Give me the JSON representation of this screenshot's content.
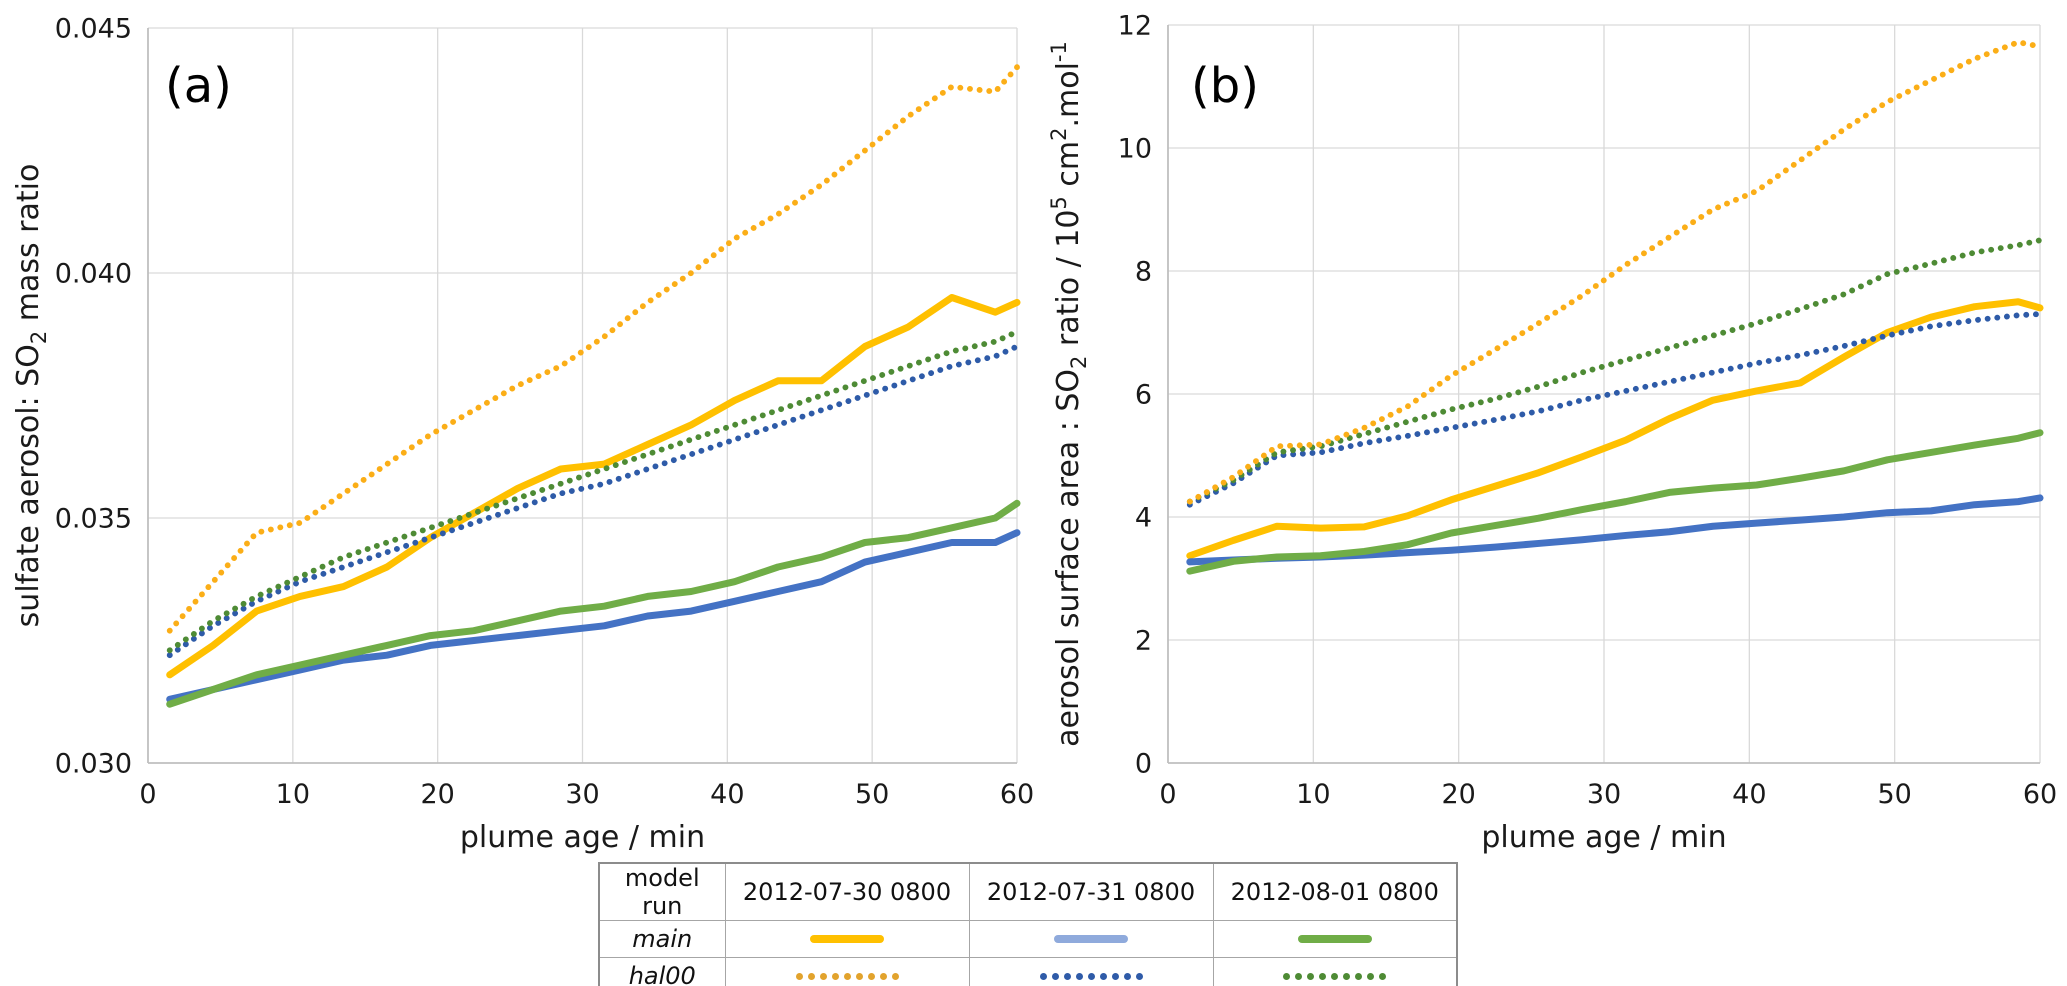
{
  "figure": {
    "background": "#ffffff"
  },
  "legend_table": {
    "header": [
      "model run",
      "2012-07-30 0800",
      "2012-07-31 0800",
      "2012-08-01 0800"
    ],
    "rows": [
      {
        "label": "main",
        "style": "solid",
        "colors": [
          "#FFC000",
          "#8FAADC",
          "#70AD47"
        ]
      },
      {
        "label": "hal00",
        "style": "dotted",
        "colors": [
          "#E2A32D",
          "#2F5BA8",
          "#4E8B35"
        ]
      }
    ]
  },
  "chart_data": [
    {
      "type": "line",
      "panel_label": "(a)",
      "xlabel": "plume age / min",
      "ylabel_parts": [
        {
          "t": "sulfate aerosol: SO"
        },
        {
          "t": "2",
          "s": "sub"
        },
        {
          "t": "  mass ratio"
        }
      ],
      "xlim": [
        0,
        60
      ],
      "ylim": [
        0.03,
        0.045
      ],
      "grid": true,
      "legend_position": "below-table",
      "xticks": [
        {
          "v": 0,
          "label": "0"
        },
        {
          "v": 10,
          "label": "10"
        },
        {
          "v": 20,
          "label": "20"
        },
        {
          "v": 30,
          "label": "30"
        },
        {
          "v": 40,
          "label": "40"
        },
        {
          "v": 50,
          "label": "50"
        },
        {
          "v": 60,
          "label": "60"
        }
      ],
      "yticks": [
        {
          "v": 0.03,
          "label": "0.030"
        },
        {
          "v": 0.035,
          "label": "0.035"
        },
        {
          "v": 0.04,
          "label": "0.040"
        },
        {
          "v": 0.045,
          "label": "0.045"
        }
      ],
      "x": [
        1.5,
        4.5,
        7.5,
        10.5,
        13.5,
        16.5,
        19.5,
        22.5,
        25.5,
        28.5,
        31.5,
        34.5,
        37.5,
        40.5,
        43.5,
        46.5,
        49.5,
        52.5,
        55.5,
        58.5,
        60
      ],
      "series": [
        {
          "name": "main 2012-07-30 0800",
          "run": "main",
          "color": "#FFC000",
          "style": "solid",
          "values": [
            0.0318,
            0.0324,
            0.0331,
            0.0334,
            0.0336,
            0.034,
            0.0346,
            0.0351,
            0.0356,
            0.036,
            0.0361,
            0.0365,
            0.0369,
            0.0374,
            0.0378,
            0.0378,
            0.0385,
            0.0389,
            0.0395,
            0.0392,
            0.0394
          ]
        },
        {
          "name": "main 2012-07-31 0800",
          "run": "main",
          "color": "#4472C4",
          "style": "solid",
          "values": [
            0.0313,
            0.0315,
            0.0317,
            0.0319,
            0.0321,
            0.0322,
            0.0324,
            0.0325,
            0.0326,
            0.0327,
            0.0328,
            0.033,
            0.0331,
            0.0333,
            0.0335,
            0.0337,
            0.0341,
            0.0343,
            0.0345,
            0.0345,
            0.0347
          ]
        },
        {
          "name": "main 2012-08-01 0800",
          "run": "main",
          "color": "#70AD47",
          "style": "solid",
          "values": [
            0.0312,
            0.0315,
            0.0318,
            0.032,
            0.0322,
            0.0324,
            0.0326,
            0.0327,
            0.0329,
            0.0331,
            0.0332,
            0.0334,
            0.0335,
            0.0337,
            0.034,
            0.0342,
            0.0345,
            0.0346,
            0.0348,
            0.035,
            0.0353
          ]
        },
        {
          "name": "hal00 2012-07-31 0800",
          "run": "hal00",
          "color": "#2E5BA8",
          "style": "dotted",
          "values": [
            0.0322,
            0.0328,
            0.0333,
            0.0337,
            0.034,
            0.0343,
            0.0346,
            0.0349,
            0.0352,
            0.0355,
            0.0357,
            0.036,
            0.0363,
            0.0366,
            0.0369,
            0.0372,
            0.0375,
            0.0378,
            0.0381,
            0.0383,
            0.0385
          ]
        },
        {
          "name": "hal00 2012-08-01 0800",
          "run": "hal00",
          "color": "#4E8B35",
          "style": "dotted",
          "values": [
            0.0323,
            0.0329,
            0.0334,
            0.0338,
            0.0342,
            0.0345,
            0.0348,
            0.0351,
            0.0354,
            0.0357,
            0.036,
            0.0363,
            0.0366,
            0.0369,
            0.0372,
            0.0375,
            0.0378,
            0.0381,
            0.0384,
            0.0386,
            0.0388
          ]
        },
        {
          "name": "hal00 2012-07-30 0800",
          "run": "hal00",
          "color": "#FBAE17",
          "style": "dotted",
          "values": [
            0.0327,
            0.0337,
            0.0347,
            0.0349,
            0.0355,
            0.0361,
            0.0367,
            0.0372,
            0.0377,
            0.0381,
            0.0387,
            0.0394,
            0.04,
            0.0407,
            0.0412,
            0.0418,
            0.0425,
            0.0432,
            0.0438,
            0.0437,
            0.0442
          ]
        }
      ]
    },
    {
      "type": "line",
      "panel_label": "(b)",
      "xlabel": "plume age / min",
      "ylabel_parts": [
        {
          "t": "aerosol surface area : SO"
        },
        {
          "t": "2",
          "s": "sub"
        },
        {
          "t": " ratio / 10"
        },
        {
          "t": "5",
          "s": "sup"
        },
        {
          "t": " cm"
        },
        {
          "t": "2",
          "s": "sup"
        },
        {
          "t": ".mol"
        },
        {
          "t": "-1",
          "s": "sup"
        }
      ],
      "xlim": [
        0,
        60
      ],
      "ylim": [
        0,
        12
      ],
      "grid": true,
      "legend_position": "below-table",
      "xticks": [
        {
          "v": 0,
          "label": "0"
        },
        {
          "v": 10,
          "label": "10"
        },
        {
          "v": 20,
          "label": "20"
        },
        {
          "v": 30,
          "label": "30"
        },
        {
          "v": 40,
          "label": "40"
        },
        {
          "v": 50,
          "label": "50"
        },
        {
          "v": 60,
          "label": "60"
        }
      ],
      "yticks": [
        {
          "v": 0,
          "label": "0"
        },
        {
          "v": 2,
          "label": "2"
        },
        {
          "v": 4,
          "label": "4"
        },
        {
          "v": 6,
          "label": "6"
        },
        {
          "v": 8,
          "label": "8"
        },
        {
          "v": 10,
          "label": "10"
        },
        {
          "v": 12,
          "label": "12"
        }
      ],
      "x": [
        1.5,
        4.5,
        7.5,
        10.5,
        13.5,
        16.5,
        19.5,
        22.5,
        25.5,
        28.5,
        31.5,
        34.5,
        37.5,
        40.5,
        43.5,
        46.5,
        49.5,
        52.5,
        55.5,
        58.5,
        60
      ],
      "series": [
        {
          "name": "main 2012-07-30 0800",
          "run": "main",
          "color": "#FFC000",
          "style": "solid",
          "values": [
            3.37,
            3.62,
            3.85,
            3.82,
            3.84,
            4.02,
            4.28,
            4.5,
            4.72,
            4.98,
            5.25,
            5.6,
            5.9,
            6.05,
            6.18,
            6.6,
            7.0,
            7.25,
            7.42,
            7.5,
            7.4
          ]
        },
        {
          "name": "main 2012-07-31 0800",
          "run": "main",
          "color": "#4472C4",
          "style": "solid",
          "values": [
            3.27,
            3.3,
            3.33,
            3.35,
            3.38,
            3.42,
            3.46,
            3.51,
            3.57,
            3.63,
            3.7,
            3.76,
            3.85,
            3.9,
            3.95,
            4.0,
            4.07,
            4.1,
            4.2,
            4.25,
            4.31
          ]
        },
        {
          "name": "main 2012-08-01 0800",
          "run": "main",
          "color": "#70AD47",
          "style": "solid",
          "values": [
            3.12,
            3.28,
            3.35,
            3.37,
            3.44,
            3.55,
            3.74,
            3.86,
            3.98,
            4.12,
            4.25,
            4.4,
            4.47,
            4.52,
            4.63,
            4.75,
            4.93,
            5.05,
            5.17,
            5.28,
            5.37
          ]
        },
        {
          "name": "hal00 2012-07-31 0800",
          "run": "hal00",
          "color": "#2E5BA8",
          "style": "dotted",
          "values": [
            4.2,
            4.55,
            5.0,
            5.05,
            5.2,
            5.32,
            5.45,
            5.58,
            5.72,
            5.9,
            6.05,
            6.2,
            6.35,
            6.5,
            6.63,
            6.78,
            6.95,
            7.1,
            7.2,
            7.28,
            7.3
          ]
        },
        {
          "name": "hal00 2012-08-01 0800",
          "run": "hal00",
          "color": "#4E8B35",
          "style": "dotted",
          "values": [
            4.25,
            4.6,
            5.05,
            5.15,
            5.35,
            5.55,
            5.75,
            5.92,
            6.12,
            6.35,
            6.55,
            6.75,
            6.95,
            7.15,
            7.38,
            7.62,
            7.95,
            8.12,
            8.3,
            8.42,
            8.5
          ]
        },
        {
          "name": "hal00 2012-07-30 0800",
          "run": "hal00",
          "color": "#FBAE17",
          "style": "dotted",
          "values": [
            4.25,
            4.65,
            5.15,
            5.18,
            5.45,
            5.8,
            6.3,
            6.72,
            7.15,
            7.6,
            8.1,
            8.55,
            9.0,
            9.3,
            9.8,
            10.3,
            10.75,
            11.1,
            11.45,
            11.72,
            11.65
          ]
        }
      ]
    }
  ]
}
